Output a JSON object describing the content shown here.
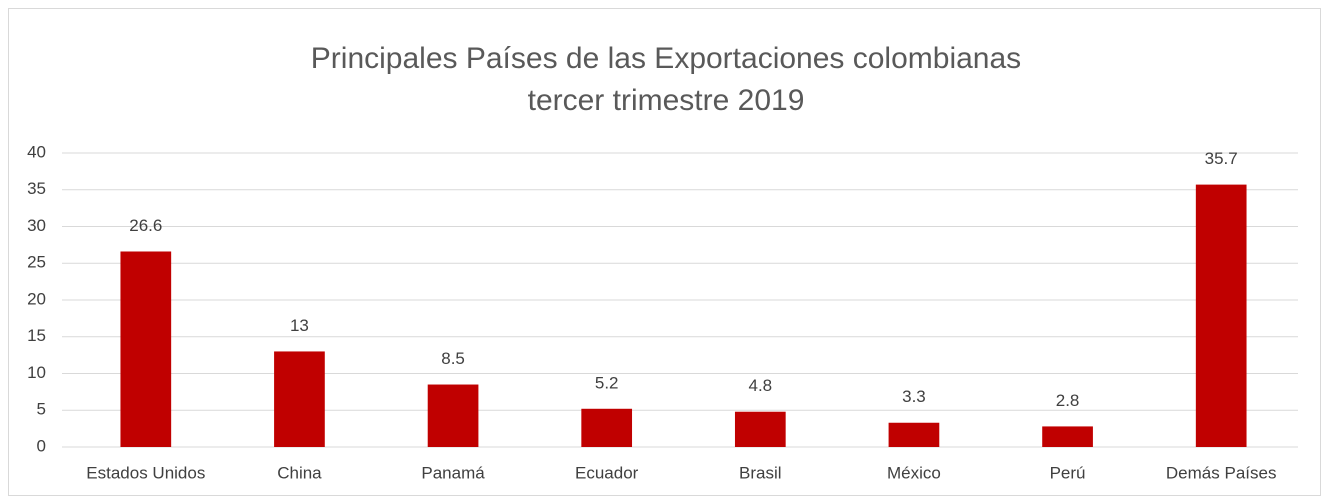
{
  "chart_data": {
    "type": "bar",
    "title": [
      "Principales Países de las Exportaciones colombianas",
      "tercer trimestre 2019"
    ],
    "categories": [
      "Estados Unidos",
      "China",
      "Panamá",
      "Ecuador",
      "Brasil",
      "México",
      "Perú",
      "Demás Países"
    ],
    "values": [
      26.6,
      13,
      8.5,
      5.2,
      4.8,
      3.3,
      2.8,
      35.7
    ],
    "color": "#c00000",
    "ylim": [
      0,
      40
    ],
    "yticks": [
      0,
      5,
      10,
      15,
      20,
      25,
      30,
      35,
      40
    ],
    "grid": true
  }
}
